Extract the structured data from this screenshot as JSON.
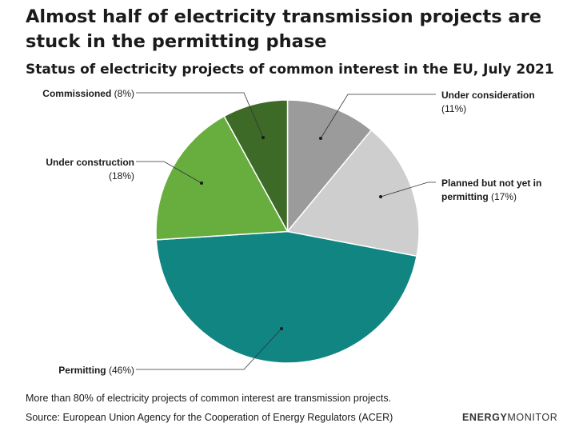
{
  "title": "Almost half of electricity transmission projects are stuck in the permitting phase",
  "subtitle": "Status of electricity projects of common interest in the EU, July 2021",
  "note": "More than 80% of electricity projects of common interest are transmission projects.",
  "source": "Source: European Union Agency for the Cooperation of Energy Regulators (ACER)",
  "logo": {
    "part1": "ENERGY",
    "part2": "MONITOR"
  },
  "chart_data": {
    "type": "pie",
    "title": "Almost half of electricity transmission projects are stuck in the permitting phase",
    "subtitle": "Status of electricity projects of common interest in the EU, July 2021",
    "slices": [
      {
        "label": "Under consideration",
        "value": 11,
        "value_label": "(11%)",
        "color": "#9b9b9b"
      },
      {
        "label": "Planned but not yet in permitting",
        "value": 17,
        "value_label": "(17%)",
        "color": "#cecece"
      },
      {
        "label": "Permitting",
        "value": 46,
        "value_label": "(46%)",
        "color": "#108582"
      },
      {
        "label": "Under construction",
        "value": 18,
        "value_label": "(18%)",
        "color": "#67ae3e"
      },
      {
        "label": "Commissioned",
        "value": 8,
        "value_label": "(8%)",
        "color": "#3d6a27"
      }
    ]
  }
}
